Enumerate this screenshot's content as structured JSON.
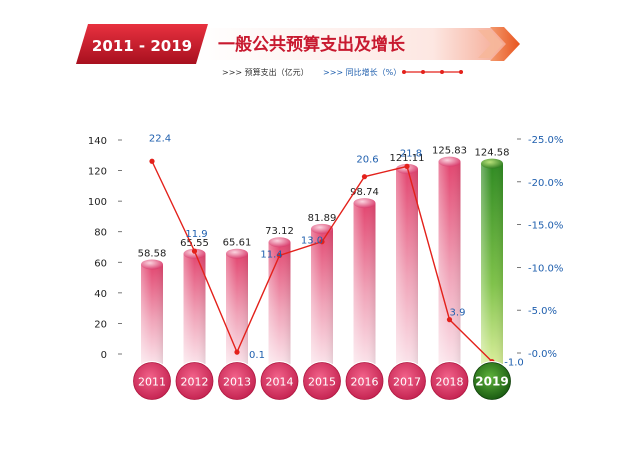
{
  "header": {
    "years_badge": "2011 - 2019",
    "title": "一般公共预算支出及增长",
    "legend_spending": ">>> 预算支出（亿元）",
    "legend_growth": ">>> 同比增长（%）"
  },
  "colors": {
    "bar_pink": "#e0507a",
    "bar_green": "#3a9a2a",
    "line_red": "#e3211b",
    "growth_label_blue": "#1f5fae",
    "banner_red": "#c8192f"
  },
  "chart_data": {
    "type": "bar",
    "title": "一般公共预算支出及增长",
    "categories": [
      "2011",
      "2012",
      "2013",
      "2014",
      "2015",
      "2016",
      "2017",
      "2018",
      "2019"
    ],
    "series": [
      {
        "name": "预算支出（亿元）",
        "type": "bar",
        "axis": "left",
        "values": [
          58.58,
          65.55,
          65.61,
          73.12,
          81.89,
          98.74,
          121.11,
          125.83,
          124.58
        ],
        "labels": [
          "58.58",
          "65.55",
          "65.61",
          "73.12",
          "81.89",
          "98.74",
          "121.11",
          "125.83",
          "124.58"
        ]
      },
      {
        "name": "同比增长（%）",
        "type": "line",
        "axis": "right",
        "values": [
          22.4,
          11.9,
          0.1,
          11.4,
          13.0,
          20.6,
          21.8,
          3.9,
          -1.0
        ],
        "labels": [
          "22.4",
          "11.9",
          "0.1",
          "11.4",
          "13.0",
          "20.6",
          "21.8",
          "3.9",
          "-1.0"
        ]
      }
    ],
    "y_left": {
      "range": [
        0,
        140
      ],
      "ticks": [
        "0",
        "20",
        "40",
        "60",
        "80",
        "100",
        "120",
        "140"
      ]
    },
    "y_right": {
      "range": [
        0,
        25
      ],
      "ticks": [
        "-0.0%",
        "-5.0%",
        "-10.0%",
        "-15.0%",
        "-20.0%",
        "-25.0%"
      ]
    },
    "highlight_category": "2019",
    "grid": false
  }
}
